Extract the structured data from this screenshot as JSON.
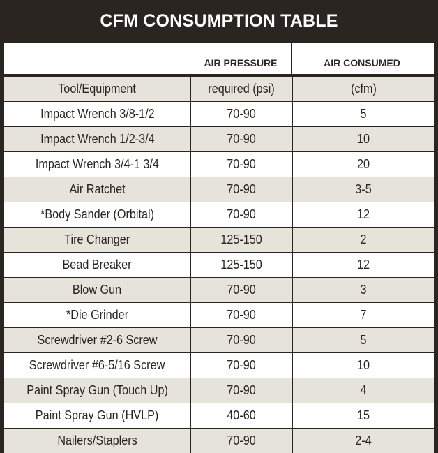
{
  "title": "CFM CONSUMPTION TABLE",
  "colors": {
    "frame": "#2b2522",
    "row_shaded": "#e6e3da",
    "row_plain": "#ffffff",
    "text_dark": "#2b2522",
    "title_text": "#ffffff"
  },
  "header": {
    "col1": "",
    "col2": "AIR PRESSURE",
    "col3": "AIR CONSUMED"
  },
  "subheader": {
    "col1": "Tool/Equipment",
    "col2": "required (psi)",
    "col3": "(cfm)"
  },
  "rows": [
    {
      "tool": "Impact Wrench 3/8-1/2",
      "pressure": "70-90",
      "cfm": "5"
    },
    {
      "tool": "Impact Wrench 1/2-3/4",
      "pressure": "70-90",
      "cfm": "10"
    },
    {
      "tool": "Impact Wrench 3/4-1 3/4",
      "pressure": "70-90",
      "cfm": "20"
    },
    {
      "tool": "Air Ratchet",
      "pressure": "70-90",
      "cfm": "3-5"
    },
    {
      "tool": "*Body Sander (Orbital)",
      "pressure": "70-90",
      "cfm": "12"
    },
    {
      "tool": "Tire Changer",
      "pressure": "125-150",
      "cfm": "2"
    },
    {
      "tool": "Bead Breaker",
      "pressure": "125-150",
      "cfm": "12"
    },
    {
      "tool": "Blow Gun",
      "pressure": "70-90",
      "cfm": "3"
    },
    {
      "tool": "*Die Grinder",
      "pressure": "70-90",
      "cfm": "7"
    },
    {
      "tool": "Screwdriver #2-6 Screw",
      "pressure": "70-90",
      "cfm": "5"
    },
    {
      "tool": "Screwdriver #6-5/16 Screw",
      "pressure": "70-90",
      "cfm": "10"
    },
    {
      "tool": "Paint Spray Gun (Touch Up)",
      "pressure": "70-90",
      "cfm": "4"
    },
    {
      "tool": "Paint Spray Gun (HVLP)",
      "pressure": "40-60",
      "cfm": "15"
    },
    {
      "tool": "Nailers/Staplers",
      "pressure": "70-90",
      "cfm": "2-4"
    }
  ]
}
